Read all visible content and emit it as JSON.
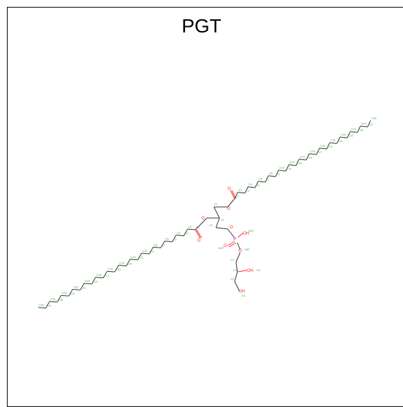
{
  "title": "PGT",
  "colors": {
    "bond": "#333333",
    "carbon_label": "#33aa33",
    "oxygen": "#ff2222",
    "phosphorus": "#cc44cc",
    "frame": "#000000"
  },
  "labels": {
    "chainA": [
      "C1",
      "C2",
      "C3",
      "C4",
      "C5",
      "C6",
      "C7",
      "C8",
      "C9",
      "C10",
      "C11",
      "C12",
      "C13",
      "C14",
      "C15",
      "C16",
      "C17",
      "C18",
      "C19",
      "C20",
      "C21",
      "C22",
      "C23",
      "C24",
      "C25",
      "C26",
      "C27",
      "C28"
    ],
    "chainB": [
      "C1",
      "C2",
      "C3",
      "C4",
      "C5",
      "C6",
      "C7",
      "C8",
      "C9",
      "C10",
      "C11",
      "C12",
      "C13",
      "C14",
      "C15",
      "C16",
      "C17",
      "C18",
      "C19",
      "C20",
      "C21",
      "C22",
      "C23",
      "C24",
      "C25",
      "C26",
      "C27",
      "C28"
    ],
    "glycerol": [
      "C1",
      "C2",
      "C3",
      "O1",
      "O2",
      "O3"
    ],
    "phosphate": [
      "P",
      "O1P",
      "O2P",
      "O3P",
      "O4P"
    ],
    "headgroup": [
      "C1",
      "C2",
      "C3",
      "O2",
      "O3"
    ],
    "oh": [
      "OH",
      "OH",
      "OH"
    ],
    "carbonylA": "O",
    "carbonylB": "O"
  }
}
